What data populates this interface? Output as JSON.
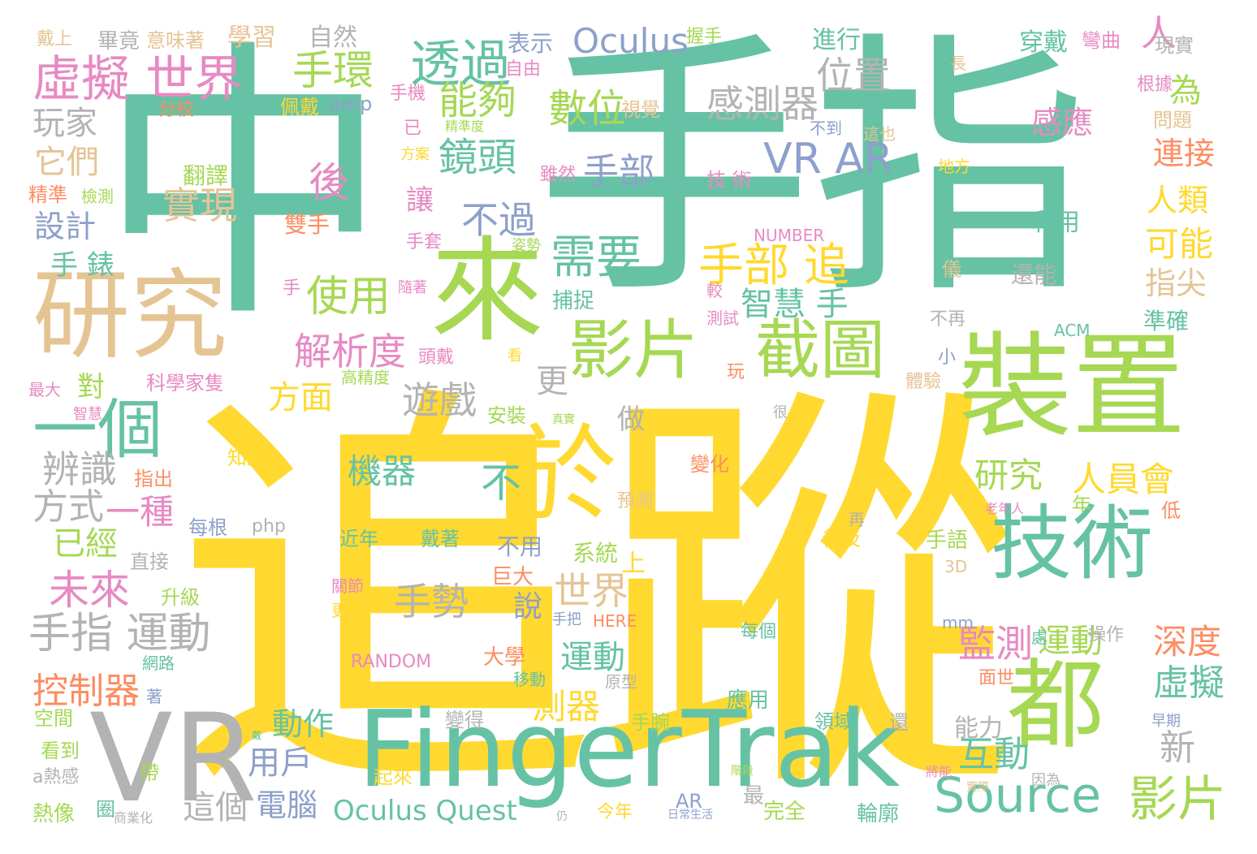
{
  "colors": {
    "green": "#66c2a5",
    "yellow": "#ffd92f",
    "lime": "#a6d854",
    "tan": "#e5c494",
    "gray": "#b3b3b3",
    "pink": "#e78ac3",
    "blue": "#8da0cb",
    "orange": "#fc8d62"
  },
  "words": [
    {
      "text": "追蹤",
      "color": "yellow"
    },
    {
      "text": "中",
      "color": "green"
    },
    {
      "text": "手指",
      "color": "green"
    },
    {
      "text": "FingerTrak",
      "color": "green"
    },
    {
      "text": "裝置",
      "color": "lime"
    },
    {
      "text": "研究",
      "color": "tan"
    },
    {
      "text": "來",
      "color": "lime"
    },
    {
      "text": "VR",
      "color": "gray"
    },
    {
      "text": "技術",
      "color": "green"
    },
    {
      "text": "都",
      "color": "lime"
    },
    {
      "text": "於",
      "color": "yellow"
    },
    {
      "text": "截圖",
      "color": "lime"
    },
    {
      "text": "影片",
      "color": "lime"
    },
    {
      "text": "一個",
      "color": "green"
    },
    {
      "text": "Source",
      "color": "green"
    },
    {
      "text": "影片",
      "color": "lime"
    },
    {
      "text": "虛擬 世界",
      "color": "pink"
    },
    {
      "text": "透過",
      "color": "green"
    },
    {
      "text": "Oculus",
      "color": "blue"
    },
    {
      "text": "VR AR",
      "color": "blue"
    },
    {
      "text": "手環",
      "color": "lime"
    },
    {
      "text": "能夠",
      "color": "lime"
    },
    {
      "text": "數位",
      "color": "lime"
    },
    {
      "text": "位置",
      "color": "gray"
    },
    {
      "text": "感測器",
      "color": "gray"
    },
    {
      "text": "鏡頭",
      "color": "green"
    },
    {
      "text": "手部",
      "color": "blue"
    },
    {
      "text": "後",
      "color": "pink"
    },
    {
      "text": "實現",
      "color": "tan"
    },
    {
      "text": "需要",
      "color": "green"
    },
    {
      "text": "使用",
      "color": "lime"
    },
    {
      "text": "手部 追",
      "color": "yellow"
    },
    {
      "text": "智慧 手",
      "color": "green"
    },
    {
      "text": "不過",
      "color": "blue"
    },
    {
      "text": "解析度",
      "color": "pink"
    },
    {
      "text": "遊戲",
      "color": "gray"
    },
    {
      "text": "更",
      "color": "gray"
    },
    {
      "text": "方面",
      "color": "yellow"
    },
    {
      "text": "不",
      "color": "green"
    },
    {
      "text": "機器",
      "color": "green"
    },
    {
      "text": "研究",
      "color": "lime"
    },
    {
      "text": "人員會",
      "color": "yellow"
    },
    {
      "text": "做",
      "color": "gray"
    },
    {
      "text": "辨識",
      "color": "gray"
    },
    {
      "text": "一種",
      "color": "pink"
    },
    {
      "text": "方式",
      "color": "gray"
    },
    {
      "text": "已經",
      "color": "lime"
    },
    {
      "text": "未來",
      "color": "pink"
    },
    {
      "text": "手指 運動",
      "color": "gray"
    },
    {
      "text": "手勢",
      "color": "gray"
    },
    {
      "text": "世界",
      "color": "tan"
    },
    {
      "text": "說",
      "color": "blue"
    },
    {
      "text": "運動",
      "color": "green"
    },
    {
      "text": "控制器",
      "color": "orange"
    },
    {
      "text": "動作",
      "color": "green"
    },
    {
      "text": "測器",
      "color": "yellow"
    },
    {
      "text": "用戶",
      "color": "blue"
    },
    {
      "text": "電腦",
      "color": "blue"
    },
    {
      "text": "這個",
      "color": "gray"
    },
    {
      "text": "Oculus Quest",
      "color": "green"
    },
    {
      "text": "監測",
      "color": "pink"
    },
    {
      "text": "運動",
      "color": "lime"
    },
    {
      "text": "互動",
      "color": "green"
    },
    {
      "text": "深度",
      "color": "orange"
    },
    {
      "text": "虛擬",
      "color": "green"
    },
    {
      "text": "新",
      "color": "gray"
    },
    {
      "text": "人",
      "color": "pink"
    },
    {
      "text": "為",
      "color": "lime"
    },
    {
      "text": "感應",
      "color": "pink"
    },
    {
      "text": "連接",
      "color": "orange"
    },
    {
      "text": "人類",
      "color": "yellow"
    },
    {
      "text": "可能",
      "color": "yellow"
    },
    {
      "text": "指尖",
      "color": "tan"
    },
    {
      "text": "玩家",
      "color": "gray"
    },
    {
      "text": "它們",
      "color": "tan"
    },
    {
      "text": "設計",
      "color": "blue"
    },
    {
      "text": "手 錶",
      "color": "green"
    },
    {
      "text": "讓",
      "color": "pink"
    },
    {
      "text": "對",
      "color": "lime"
    },
    {
      "text": "自然",
      "color": "gray"
    },
    {
      "text": "學習",
      "color": "tan"
    },
    {
      "text": "戴上",
      "color": "tan"
    },
    {
      "text": "畢竟",
      "color": "gray"
    },
    {
      "text": "意味著",
      "color": "tan"
    },
    {
      "text": "表示",
      "color": "blue"
    },
    {
      "text": "自由",
      "color": "pink"
    },
    {
      "text": "握手",
      "color": "lime"
    },
    {
      "text": "進行",
      "color": "green"
    },
    {
      "text": "穿戴",
      "color": "green"
    },
    {
      "text": "彎曲",
      "color": "pink"
    },
    {
      "text": "現實",
      "color": "gray"
    },
    {
      "text": "長",
      "color": "tan"
    },
    {
      "text": "根據",
      "color": "pink"
    },
    {
      "text": "問題",
      "color": "tan"
    },
    {
      "text": "分校",
      "color": "orange"
    },
    {
      "text": "佩戴",
      "color": "yellow"
    },
    {
      "text": "amp",
      "color": "blue"
    },
    {
      "text": "手機",
      "color": "pink"
    },
    {
      "text": "視覺",
      "color": "tan"
    },
    {
      "text": "已",
      "color": "pink"
    },
    {
      "text": "精準度",
      "color": "lime"
    },
    {
      "text": "不到",
      "color": "blue"
    },
    {
      "text": "這也",
      "color": "tan"
    },
    {
      "text": "方案",
      "color": "yellow"
    },
    {
      "text": "翻譯",
      "color": "lime"
    },
    {
      "text": "雖然",
      "color": "pink"
    },
    {
      "text": "技 術",
      "color": "pink"
    },
    {
      "text": "地方",
      "color": "yellow"
    },
    {
      "text": "精準",
      "color": "orange"
    },
    {
      "text": "檢測",
      "color": "lime"
    },
    {
      "text": "雙手",
      "color": "orange"
    },
    {
      "text": "利用",
      "color": "green"
    },
    {
      "text": "NUMBER",
      "color": "pink"
    },
    {
      "text": "手套",
      "color": "pink"
    },
    {
      "text": "姿勢",
      "color": "lime"
    },
    {
      "text": "儀",
      "color": "tan"
    },
    {
      "text": "還能",
      "color": "gray"
    },
    {
      "text": "手",
      "color": "pink"
    },
    {
      "text": "隨著",
      "color": "pink"
    },
    {
      "text": "捕捉",
      "color": "green"
    },
    {
      "text": "較",
      "color": "pink"
    },
    {
      "text": "測試",
      "color": "pink"
    },
    {
      "text": "不再",
      "color": "gray"
    },
    {
      "text": "準確",
      "color": "green"
    },
    {
      "text": "ACM",
      "color": "green"
    },
    {
      "text": "頭戴",
      "color": "pink"
    },
    {
      "text": "看",
      "color": "yellow"
    },
    {
      "text": "小",
      "color": "blue"
    },
    {
      "text": "最大",
      "color": "pink"
    },
    {
      "text": "科學家隻",
      "color": "pink"
    },
    {
      "text": "高精度",
      "color": "lime"
    },
    {
      "text": "玩",
      "color": "orange"
    },
    {
      "text": "體驗",
      "color": "tan"
    },
    {
      "text": "智慧",
      "color": "pink"
    },
    {
      "text": "安裝",
      "color": "lime"
    },
    {
      "text": "真實",
      "color": "lime"
    },
    {
      "text": "很",
      "color": "gray"
    },
    {
      "text": "知道",
      "color": "yellow"
    },
    {
      "text": "指出",
      "color": "orange"
    },
    {
      "text": "變化",
      "color": "orange"
    },
    {
      "text": "預測",
      "color": "tan"
    },
    {
      "text": "再",
      "color": "gray"
    },
    {
      "text": "老年人",
      "color": "pink"
    },
    {
      "text": "低",
      "color": "orange"
    },
    {
      "text": "年",
      "color": "lime"
    },
    {
      "text": "每根",
      "color": "blue"
    },
    {
      "text": "php",
      "color": "gray"
    },
    {
      "text": "近年",
      "color": "green"
    },
    {
      "text": "戴著",
      "color": "green"
    },
    {
      "text": "不用",
      "color": "blue"
    },
    {
      "text": "系統",
      "color": "lime"
    },
    {
      "text": "上",
      "color": "yellow"
    },
    {
      "text": "普及",
      "color": "yellow"
    },
    {
      "text": "手語",
      "color": "lime"
    },
    {
      "text": "直接",
      "color": "gray"
    },
    {
      "text": "巨大",
      "color": "orange"
    },
    {
      "text": "3D",
      "color": "tan"
    },
    {
      "text": "升級",
      "color": "lime"
    },
    {
      "text": "關節",
      "color": "pink"
    },
    {
      "text": "更好",
      "color": "yellow"
    },
    {
      "text": "手把",
      "color": "blue"
    },
    {
      "text": "HERE",
      "color": "orange"
    },
    {
      "text": "每個",
      "color": "green"
    },
    {
      "text": "mm",
      "color": "blue"
    },
    {
      "text": "處",
      "color": "green"
    },
    {
      "text": "操作",
      "color": "gray"
    },
    {
      "text": "網路",
      "color": "green"
    },
    {
      "text": "RANDOM",
      "color": "pink"
    },
    {
      "text": "大學",
      "color": "orange"
    },
    {
      "text": "移動",
      "color": "green"
    },
    {
      "text": "原型",
      "color": "gray"
    },
    {
      "text": "面世",
      "color": "orange"
    },
    {
      "text": "著",
      "color": "blue"
    },
    {
      "text": "應用",
      "color": "green"
    },
    {
      "text": "空間",
      "color": "lime"
    },
    {
      "text": "變得",
      "color": "gray"
    },
    {
      "text": "手腕",
      "color": "lime"
    },
    {
      "text": "領域",
      "color": "green"
    },
    {
      "text": "還",
      "color": "gray"
    },
    {
      "text": "能力",
      "color": "gray"
    },
    {
      "text": "早期",
      "color": "blue"
    },
    {
      "text": "看到",
      "color": "lime"
    },
    {
      "text": "戴",
      "color": "green"
    },
    {
      "text": "起來",
      "color": "yellow"
    },
    {
      "text": "將能",
      "color": "pink"
    },
    {
      "text": "a熱感",
      "color": "gray"
    },
    {
      "text": "帶",
      "color": "lime"
    },
    {
      "text": "階段",
      "color": "lime"
    },
    {
      "text": "實際",
      "color": "tan"
    },
    {
      "text": "因為",
      "color": "gray"
    },
    {
      "text": "熱像",
      "color": "lime"
    },
    {
      "text": "圈",
      "color": "green"
    },
    {
      "text": "商業化",
      "color": "gray"
    },
    {
      "text": "AR",
      "color": "blue"
    },
    {
      "text": "最",
      "color": "gray"
    },
    {
      "text": "仍",
      "color": "gray"
    },
    {
      "text": "今年",
      "color": "yellow"
    },
    {
      "text": "日常生活",
      "color": "blue"
    },
    {
      "text": "完全",
      "color": "lime"
    },
    {
      "text": "輪廓",
      "color": "green"
    }
  ]
}
